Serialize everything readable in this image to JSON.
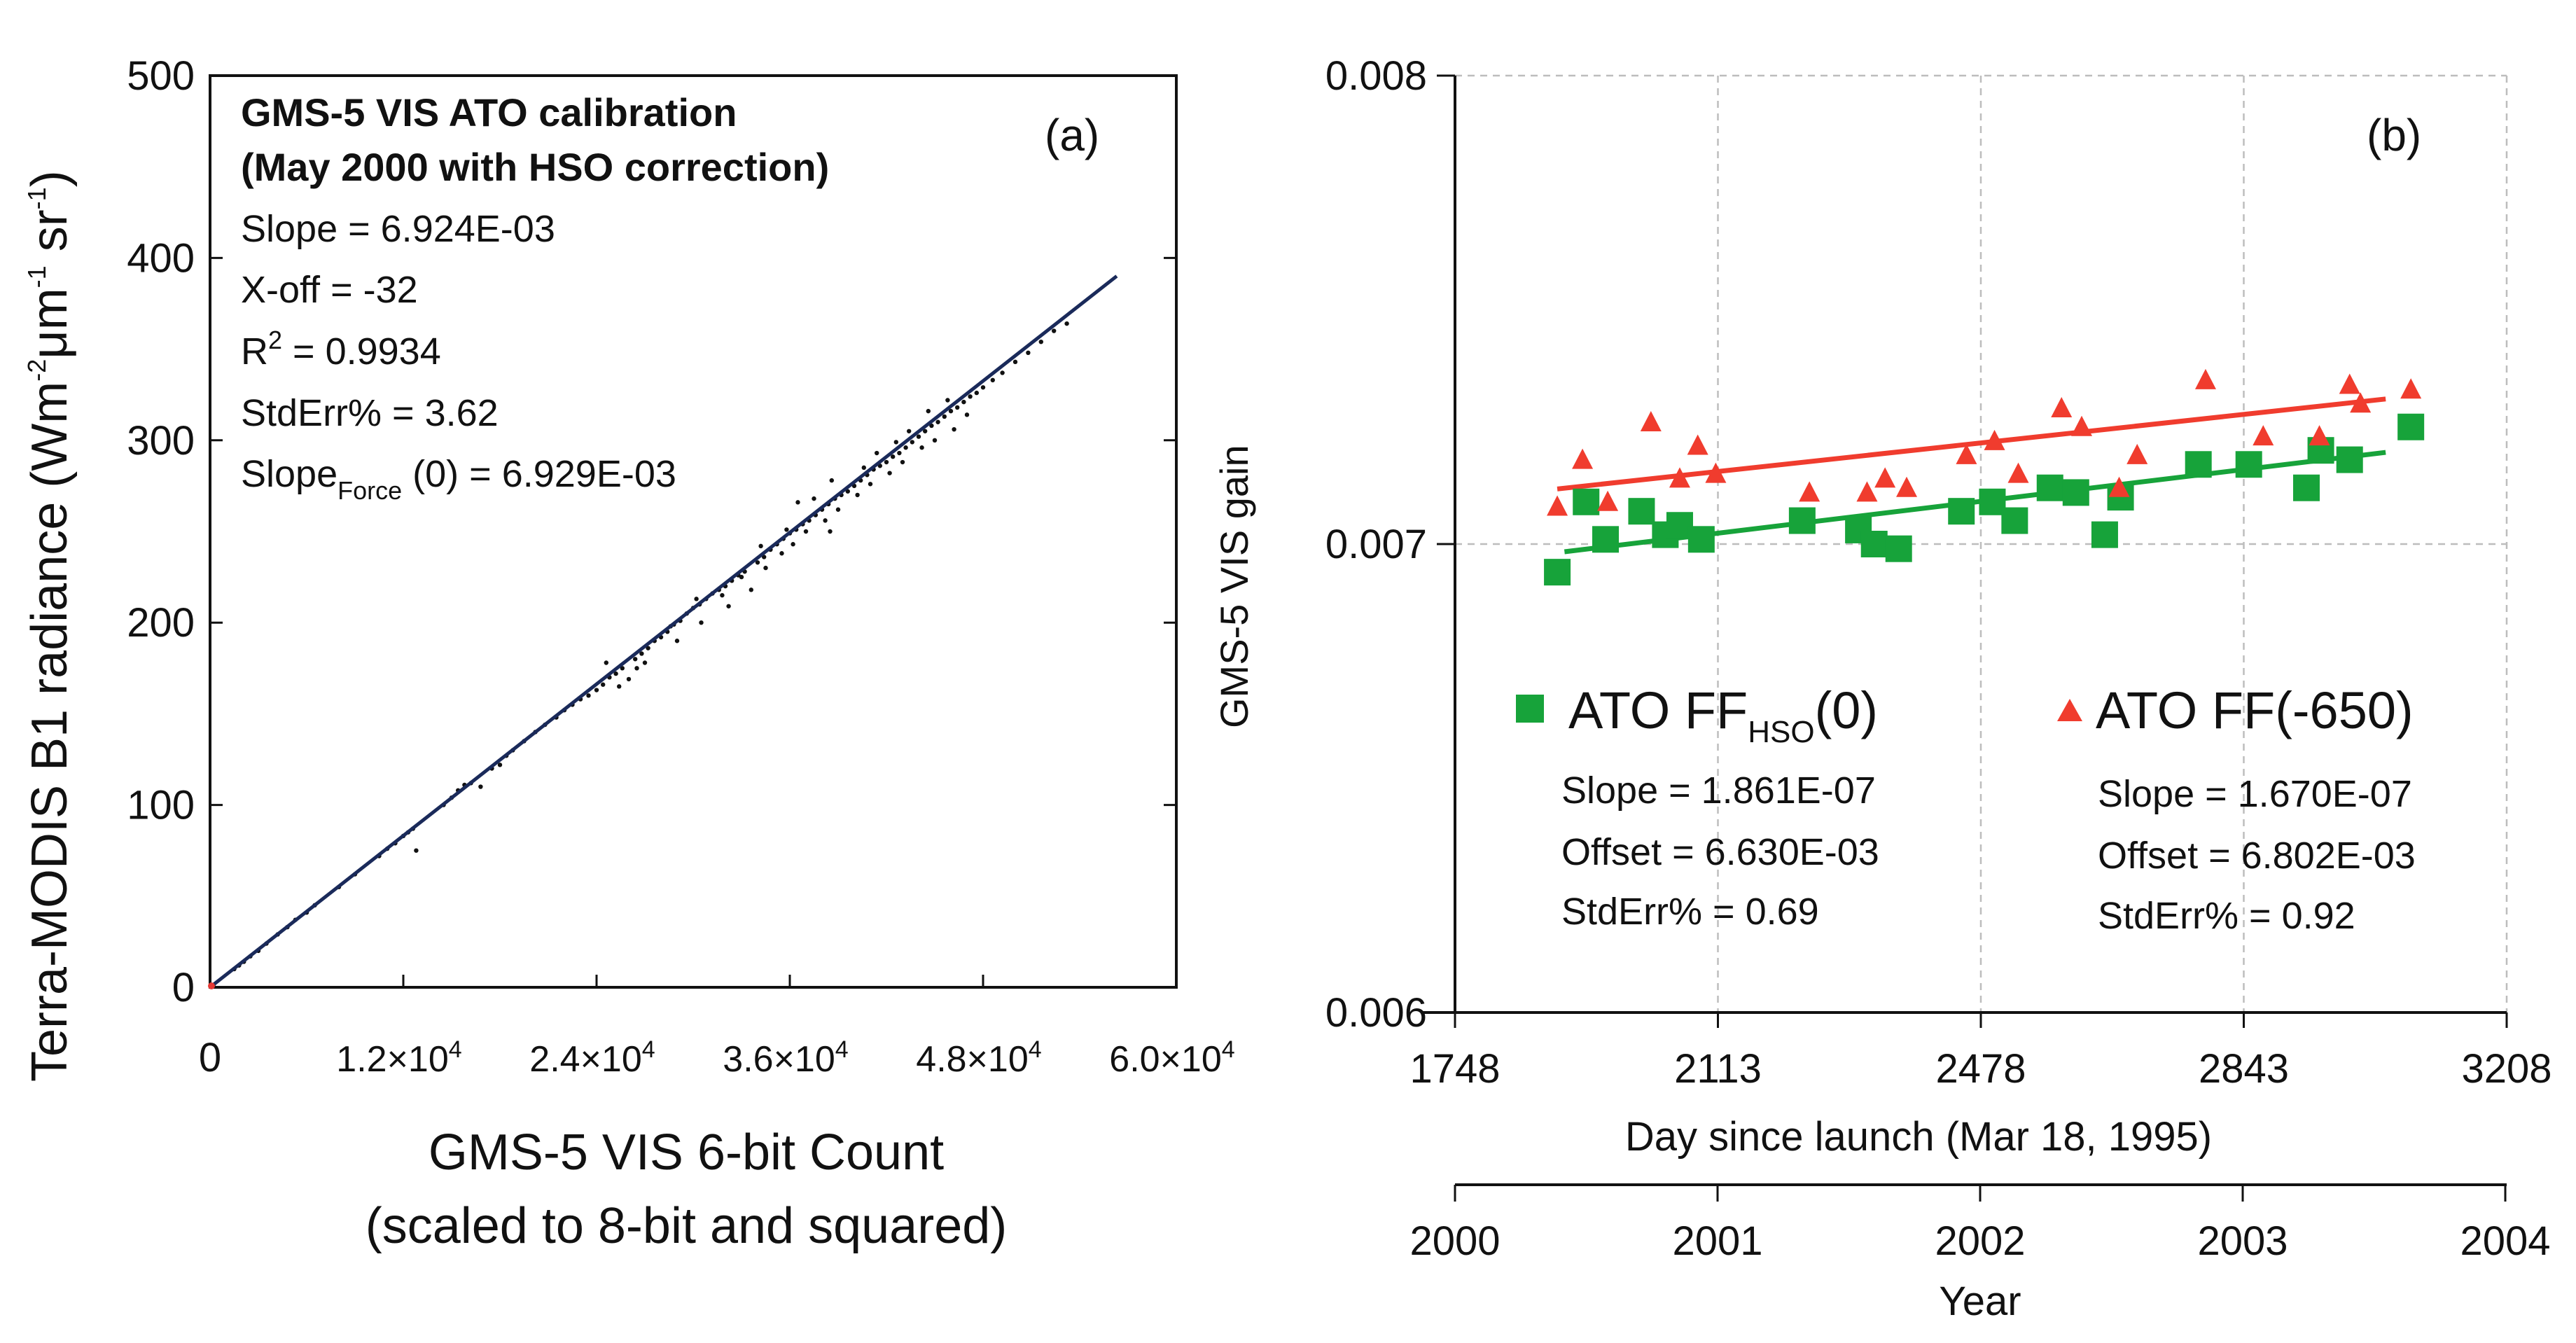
{
  "chart_data": [
    {
      "id": "a",
      "type": "scatter",
      "panel_label": "(a)",
      "xlabel_line1": "GMS-5 VIS 6-bit Count",
      "xlabel_line2": "(scaled to 8-bit and squared)",
      "ylabel_main": "Terra-MODIS B1 radiance (Wm",
      "ylabel_sup1": "-2",
      "ylabel_mid": "μm",
      "ylabel_sup2": "-1",
      "ylabel_sr": " sr",
      "ylabel_sup3": "-1",
      "ylabel_end": ")",
      "xlim": [
        0,
        60000
      ],
      "ylim": [
        0,
        500
      ],
      "x_tick_zero": "0",
      "x_ticks": [
        {
          "value": 12000,
          "mant": "1.2×10",
          "exp": "4"
        },
        {
          "value": 24000,
          "mant": "2.4×10",
          "exp": "4"
        },
        {
          "value": 36000,
          "mant": "3.6×10",
          "exp": "4"
        },
        {
          "value": 48000,
          "mant": "4.8×10",
          "exp": "4"
        },
        {
          "value": 60000,
          "mant": "6.0×10",
          "exp": "4"
        }
      ],
      "y_ticks": [
        0,
        100,
        200,
        300,
        400,
        500
      ],
      "annotation": {
        "title_line1": "GMS-5 VIS ATO calibration",
        "title_line2": "(May 2000 with HSO correction)",
        "slope": "Slope = 6.924E-03",
        "xoff": "X-off = -32",
        "r2_pre": "R",
        "r2_sup": "2",
        "r2_post": " = 0.9934",
        "stderr": "StdErr% = 3.62",
        "slopeforce_pre": "Slope",
        "slopeforce_sub": "Force",
        "slopeforce_post": " (0) = 6.929E-03"
      },
      "fit": {
        "slope": 0.006924,
        "x_offset": -32,
        "x_end": 56300
      },
      "series": [
        {
          "name": "samples",
          "points": [
            [
              200,
              1
            ],
            [
              1500,
              10
            ],
            [
              1800,
              12
            ],
            [
              2100,
              14
            ],
            [
              2500,
              17
            ],
            [
              3000,
              20
            ],
            [
              3500,
              24
            ],
            [
              4200,
              29
            ],
            [
              4800,
              33
            ],
            [
              5300,
              37
            ],
            [
              6000,
              41
            ],
            [
              6500,
              45
            ],
            [
              8000,
              55
            ],
            [
              9000,
              62
            ],
            [
              10500,
              72
            ],
            [
              11000,
              76
            ],
            [
              11500,
              79
            ],
            [
              12000,
              83
            ],
            [
              12300,
              85
            ],
            [
              12600,
              87
            ],
            [
              12800,
              75
            ],
            [
              14500,
              100
            ],
            [
              15000,
              104
            ],
            [
              15400,
              108
            ],
            [
              15800,
              111
            ],
            [
              16200,
              112
            ],
            [
              16800,
              110
            ],
            [
              17500,
              120
            ],
            [
              18000,
              122
            ],
            [
              18400,
              127
            ],
            [
              18800,
              130
            ],
            [
              19500,
              135
            ],
            [
              20200,
              140
            ],
            [
              20800,
              144
            ],
            [
              21500,
              148
            ],
            [
              22000,
              152
            ],
            [
              22500,
              155
            ],
            [
              23000,
              158
            ],
            [
              23500,
              160
            ],
            [
              24000,
              163
            ],
            [
              24400,
              166
            ],
            [
              24800,
              170
            ],
            [
              25200,
              172
            ],
            [
              25600,
              175
            ],
            [
              26000,
              169
            ],
            [
              26400,
              180
            ],
            [
              26800,
              183
            ],
            [
              27200,
              186
            ],
            [
              27600,
              190
            ],
            [
              28000,
              192
            ],
            [
              28400,
              195
            ],
            [
              28800,
              199
            ],
            [
              29200,
              201
            ],
            [
              29600,
              205
            ],
            [
              30000,
              208
            ],
            [
              30400,
              210
            ],
            [
              30800,
              213
            ],
            [
              31200,
              216
            ],
            [
              31600,
              218
            ],
            [
              32000,
              220
            ],
            [
              32400,
              223
            ],
            [
              32800,
              226
            ],
            [
              33200,
              228
            ],
            [
              33600,
              218
            ],
            [
              34000,
              233
            ],
            [
              34400,
              236
            ],
            [
              34800,
              240
            ],
            [
              35200,
              243
            ],
            [
              35600,
              246
            ],
            [
              36000,
              249
            ],
            [
              36400,
              251
            ],
            [
              36800,
              254
            ],
            [
              37200,
              256
            ],
            [
              37600,
              259
            ],
            [
              38000,
              262
            ],
            [
              38400,
              265
            ],
            [
              38800,
              268
            ],
            [
              39200,
              270
            ],
            [
              39600,
              272
            ],
            [
              40000,
              275
            ],
            [
              40400,
              278
            ],
            [
              40800,
              281
            ],
            [
              41200,
              284
            ],
            [
              41600,
              286
            ],
            [
              42000,
              288
            ],
            [
              42400,
              291
            ],
            [
              42800,
              293
            ],
            [
              43200,
              296
            ],
            [
              43600,
              299
            ],
            [
              44000,
              302
            ],
            [
              44400,
              305
            ],
            [
              44800,
              308
            ],
            [
              45200,
              310
            ],
            [
              45600,
              313
            ],
            [
              46000,
              316
            ],
            [
              46400,
              318
            ],
            [
              46800,
              321
            ],
            [
              47200,
              324
            ],
            [
              47600,
              326
            ],
            [
              48000,
              329
            ],
            [
              48600,
              333
            ],
            [
              49200,
              337
            ],
            [
              50000,
              343
            ],
            [
              50800,
              348
            ],
            [
              51600,
              354
            ],
            [
              52400,
              360
            ],
            [
              53200,
              364
            ],
            [
              26500,
              175
            ],
            [
              27000,
              178
            ],
            [
              29000,
              190
            ],
            [
              30500,
              200
            ],
            [
              31800,
              215
            ],
            [
              33000,
              225
            ],
            [
              34500,
              230
            ],
            [
              35500,
              238
            ],
            [
              36200,
              243
            ],
            [
              37000,
              250
            ],
            [
              38200,
              256
            ],
            [
              39000,
              262
            ],
            [
              40200,
              270
            ],
            [
              41000,
              276
            ],
            [
              42200,
              282
            ],
            [
              43000,
              288
            ],
            [
              44200,
              296
            ],
            [
              45000,
              300
            ],
            [
              46200,
              306
            ],
            [
              47000,
              314
            ],
            [
              36500,
              266
            ],
            [
              37500,
              268
            ],
            [
              38600,
              278
            ],
            [
              40600,
              285
            ],
            [
              41400,
              293
            ],
            [
              43400,
              305
            ],
            [
              44600,
              316
            ],
            [
              45800,
              322
            ],
            [
              24600,
              178
            ],
            [
              25400,
              165
            ],
            [
              28600,
              198
            ],
            [
              30200,
              213
            ],
            [
              32200,
              209
            ],
            [
              34200,
              242
            ],
            [
              35800,
              251
            ],
            [
              38500,
              250
            ],
            [
              42600,
              299
            ]
          ]
        }
      ]
    },
    {
      "id": "b",
      "type": "scatter",
      "panel_label": "(b)",
      "ylabel": "GMS-5 VIS gain",
      "xlabel": "Day since launch (Mar 18, 1995)",
      "xlabel2": "Year",
      "xlim": [
        1748,
        3208
      ],
      "ylim": [
        0.006,
        0.008
      ],
      "x_ticks": [
        1748,
        2113,
        2478,
        2843,
        3208
      ],
      "x_tick_labels": [
        "1748",
        "2113",
        "2478",
        "2843",
        "3208"
      ],
      "year_ticks": [
        "2000",
        "2001",
        "2002",
        "2003",
        "2004"
      ],
      "y_ticks": [
        0.006,
        0.007,
        0.008
      ],
      "y_tick_labels": [
        "0.006",
        "0.007",
        "0.008"
      ],
      "grid": true,
      "series": [
        {
          "name": "ATO FF_HSO(0)",
          "legend_pre": "ATO FF",
          "legend_sub": "HSO",
          "legend_post": "(0)",
          "marker": "square",
          "color": "#17a33a",
          "fit_color": "#17a33a",
          "slope_text": "Slope = 1.861E-07",
          "offset_text": "Offset = 6.630E-03",
          "stderr_text": "StdErr% = 0.69",
          "fit": {
            "slope": 1.861e-07,
            "offset": 0.00663,
            "x_start": 1900,
            "x_end": 3040
          },
          "points": [
            [
              1890,
              0.00694
            ],
            [
              1930,
              0.00709
            ],
            [
              1957,
              0.00701
            ],
            [
              2007,
              0.00707
            ],
            [
              2040,
              0.00702
            ],
            [
              2060,
              0.00704
            ],
            [
              2090,
              0.00701
            ],
            [
              2230,
              0.00705
            ],
            [
              2308,
              0.00703
            ],
            [
              2330,
              0.007
            ],
            [
              2364,
              0.00699
            ],
            [
              2451,
              0.00707
            ],
            [
              2494,
              0.00709
            ],
            [
              2525,
              0.00705
            ],
            [
              2574,
              0.00712
            ],
            [
              2610,
              0.00711
            ],
            [
              2650,
              0.00702
            ],
            [
              2672,
              0.0071
            ],
            [
              2780,
              0.00717
            ],
            [
              2850,
              0.00717
            ],
            [
              2930,
              0.00712
            ],
            [
              2950,
              0.0072
            ],
            [
              2990,
              0.00718
            ],
            [
              3075,
              0.00725
            ]
          ]
        },
        {
          "name": "ATO FF(-650)",
          "legend_text": "ATO FF(-650)",
          "marker": "triangle",
          "color": "#f03c2e",
          "fit_color": "#f03c2e",
          "slope_text": "Slope = 1.670E-07",
          "offset_text": "Offset = 6.802E-03",
          "stderr_text": "StdErr% = 0.92",
          "fit": {
            "slope": 1.67e-07,
            "offset": 0.006802,
            "x_start": 1890,
            "x_end": 3040
          },
          "points": [
            [
              1890,
              0.00708
            ],
            [
              1925,
              0.00718
            ],
            [
              1960,
              0.00709
            ],
            [
              2020,
              0.00726
            ],
            [
              2060,
              0.00714
            ],
            [
              2085,
              0.00721
            ],
            [
              2110,
              0.00715
            ],
            [
              2240,
              0.00711
            ],
            [
              2320,
              0.00711
            ],
            [
              2345,
              0.00714
            ],
            [
              2375,
              0.00712
            ],
            [
              2458,
              0.00719
            ],
            [
              2497,
              0.00722
            ],
            [
              2530,
              0.00715
            ],
            [
              2590,
              0.00729
            ],
            [
              2618,
              0.00725
            ],
            [
              2670,
              0.00712
            ],
            [
              2695,
              0.00719
            ],
            [
              2790,
              0.00735
            ],
            [
              2870,
              0.00723
            ],
            [
              2948,
              0.00723
            ],
            [
              2990,
              0.00734
            ],
            [
              3005,
              0.0073
            ],
            [
              3075,
              0.00733
            ]
          ]
        }
      ]
    }
  ]
}
